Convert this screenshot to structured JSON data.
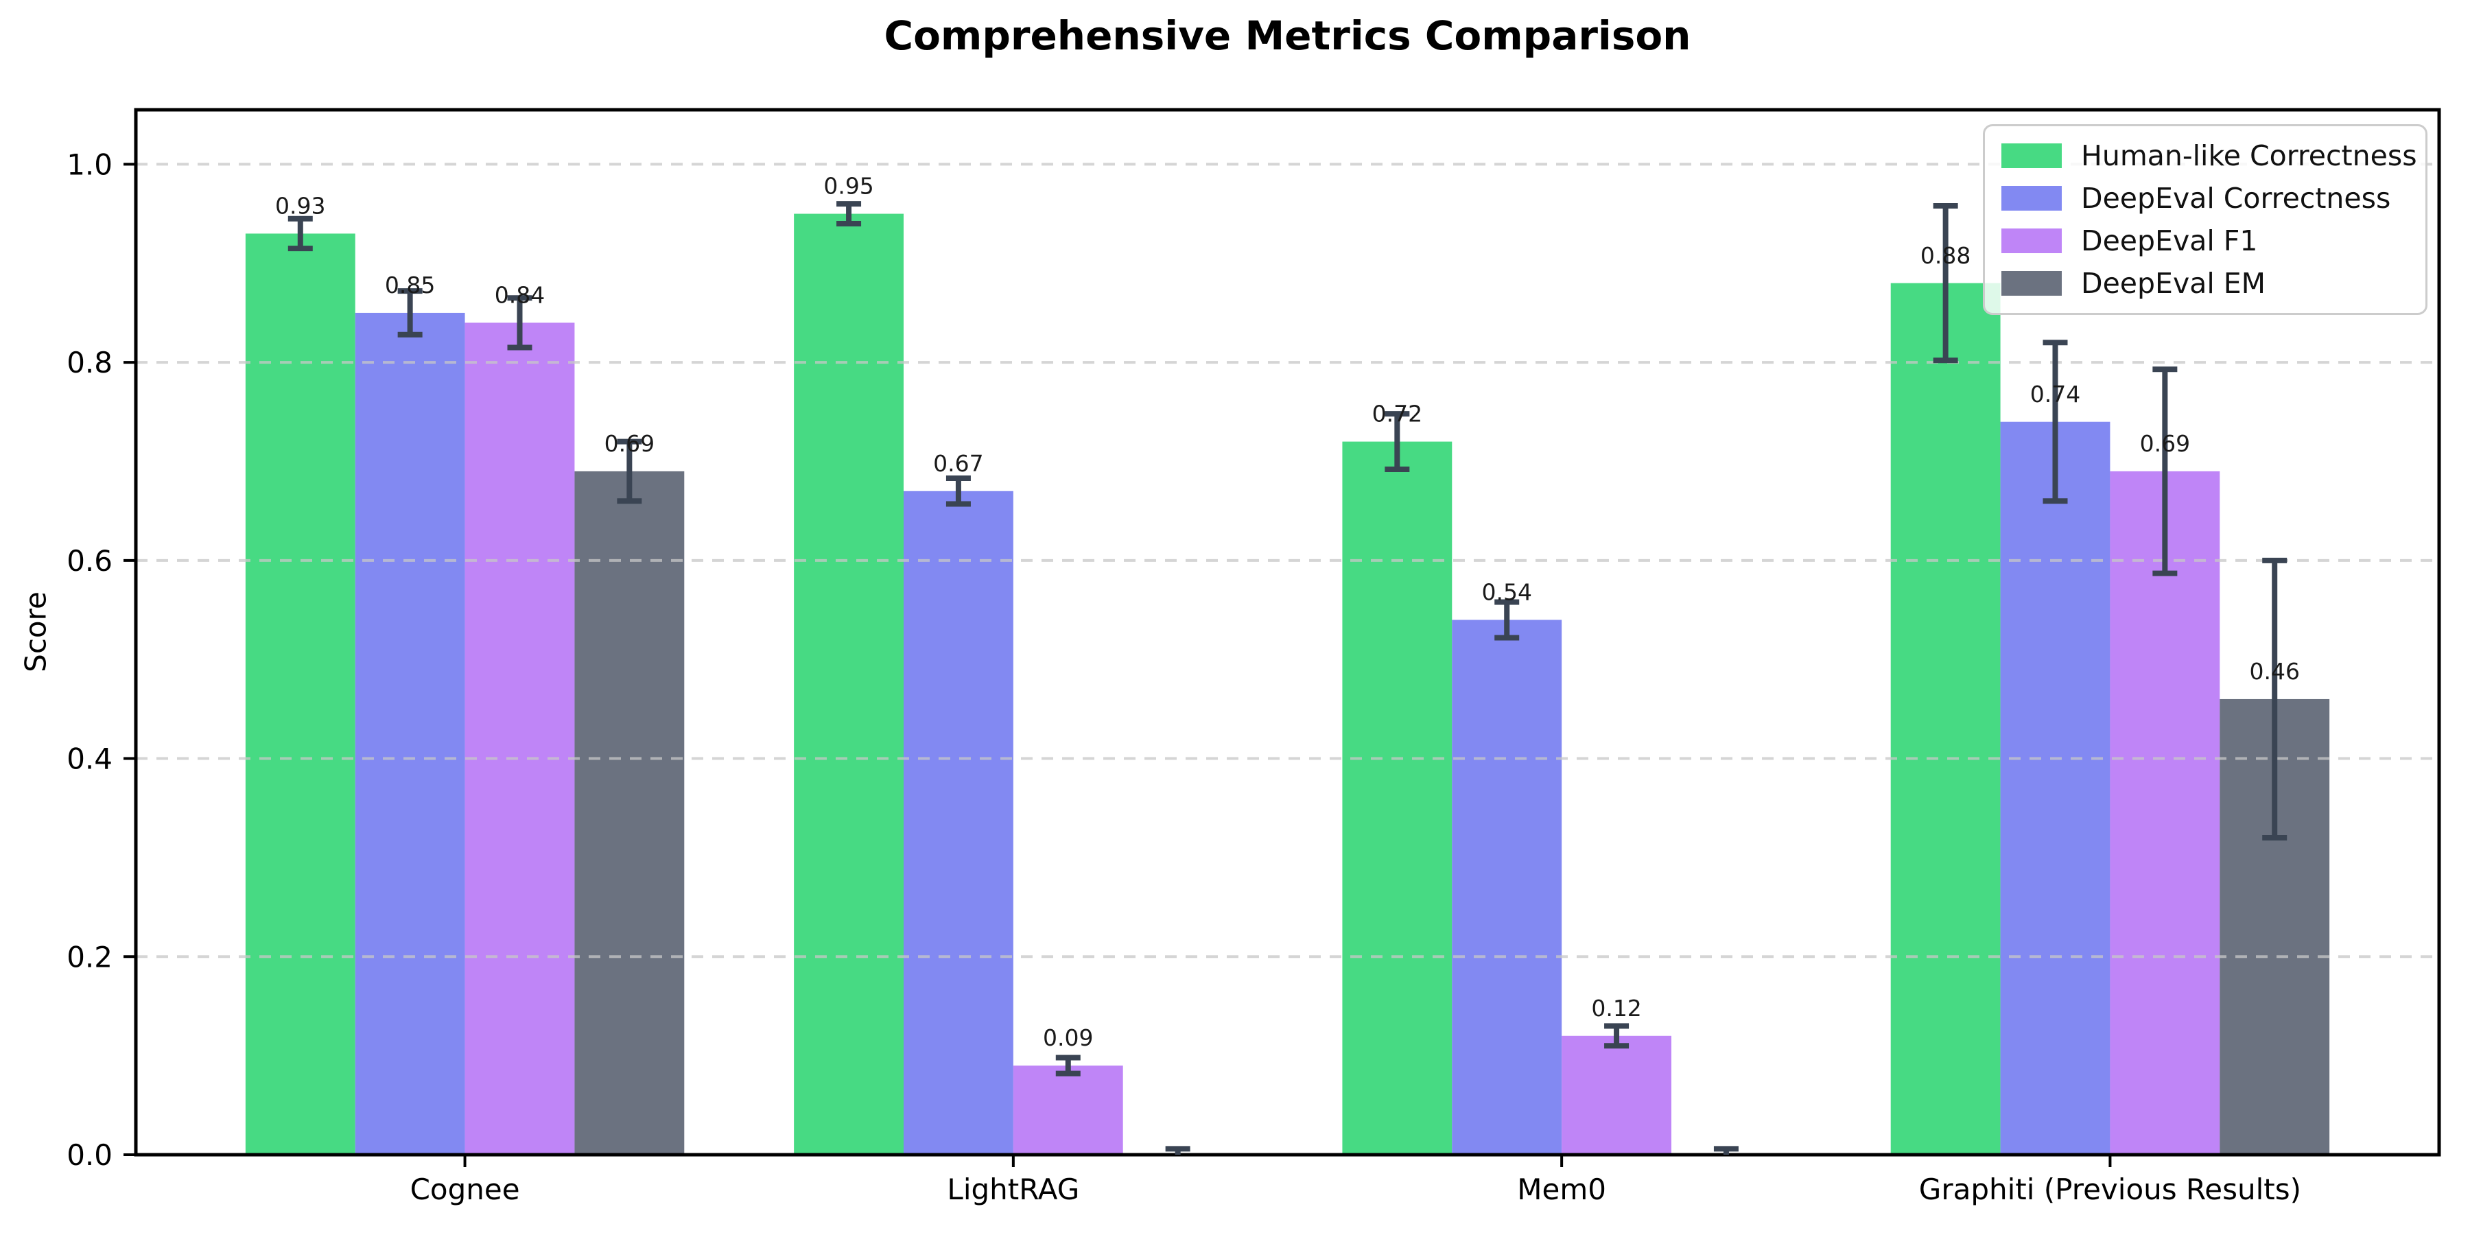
{
  "chart_data": {
    "type": "bar",
    "title": "Comprehensive Metrics Comparison",
    "ylabel": "Score",
    "xlabel": "",
    "categories": [
      "Cognee",
      "LightRAG",
      "Mem0",
      "Graphiti (Previous Results)"
    ],
    "series": [
      {
        "name": "Human-like Correctness",
        "color": "#47da83",
        "values": [
          0.93,
          0.95,
          0.72,
          0.88
        ],
        "errors": [
          0.015,
          0.01,
          0.028,
          0.078
        ],
        "labels": [
          "0.93",
          "0.95",
          "0.72",
          "0.88"
        ]
      },
      {
        "name": "DeepEval Correctness",
        "color": "#8289f2",
        "values": [
          0.85,
          0.67,
          0.54,
          0.74
        ],
        "errors": [
          0.022,
          0.013,
          0.018,
          0.08
        ],
        "labels": [
          "0.85",
          "0.67",
          "0.54",
          "0.74"
        ]
      },
      {
        "name": "DeepEval F1",
        "color": "#bf85f7",
        "values": [
          0.84,
          0.09,
          0.12,
          0.69
        ],
        "errors": [
          0.025,
          0.008,
          0.01,
          0.103
        ],
        "labels": [
          "0.84",
          "0.09",
          "0.12",
          "0.69"
        ]
      },
      {
        "name": "DeepEval EM",
        "color": "#6b7280",
        "values": [
          0.69,
          0.0,
          0.0,
          0.46
        ],
        "errors": [
          0.03,
          0.006,
          0.006,
          0.14
        ],
        "labels": [
          "0.69",
          "",
          "",
          "0.46"
        ]
      }
    ],
    "ytick_values": [
      0.0,
      0.2,
      0.4,
      0.6,
      0.8,
      1.0
    ],
    "ytick_labels": [
      "0.0",
      "0.2",
      "0.4",
      "0.6",
      "0.8",
      "1.0"
    ],
    "ylim": [
      0,
      1.055
    ],
    "grid": "horizontal-dashed",
    "legend_position": "upper right",
    "bar_label_offset": 0.02,
    "colors": {
      "error_bar": "#3a4453",
      "grid_line": "#c8c8c8",
      "spine": "#000000",
      "value_label": "#1a1a1a",
      "tick_label": "#000000"
    }
  }
}
